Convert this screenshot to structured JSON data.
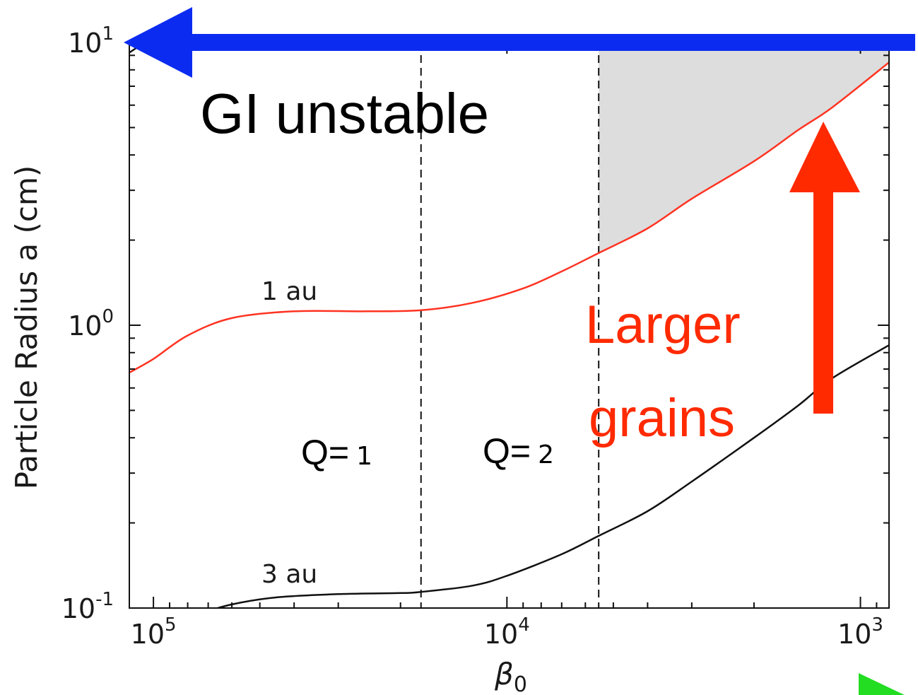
{
  "chart_data": {
    "type": "line",
    "xlabel": "β",
    "xlabel_sub": "0",
    "ylabel": "Particle Radius a (cm)",
    "x_scale": "log",
    "y_scale": "log",
    "x_reversed": true,
    "xlim": [
      117000,
      830
    ],
    "ylim": [
      0.1,
      10
    ],
    "x_ticks": [
      {
        "value": 100000,
        "base": "10",
        "exp": "5"
      },
      {
        "value": 10000,
        "base": "10",
        "exp": "4"
      },
      {
        "value": 1000,
        "base": "10",
        "exp": "3"
      }
    ],
    "y_ticks": [
      {
        "value": 0.1,
        "base": "10",
        "exp": "-1"
      },
      {
        "value": 1,
        "base": "10",
        "exp": "0"
      },
      {
        "value": 10,
        "base": "10",
        "exp": "1"
      }
    ],
    "series": [
      {
        "name": "1 au",
        "color": "#ff3322",
        "x": [
          117000,
          100000,
          80000,
          60000,
          40000,
          25000,
          17500,
          12500,
          9000,
          7000,
          5500,
          4000,
          3000,
          2000,
          1500,
          1200,
          830
        ],
        "y": [
          0.68,
          0.76,
          0.92,
          1.06,
          1.12,
          1.12,
          1.13,
          1.2,
          1.35,
          1.55,
          1.8,
          2.2,
          2.8,
          3.8,
          4.9,
          5.9,
          8.5
        ]
      },
      {
        "name": "3 au",
        "color": "#111111",
        "x": [
          117000,
          75000,
          60000,
          45000,
          30000,
          20000,
          17500,
          12500,
          10000,
          7000,
          5500,
          4000,
          3000,
          2000,
          1500,
          1200,
          830
        ],
        "y": [
          0.08,
          0.095,
          0.103,
          0.109,
          0.112,
          0.113,
          0.114,
          0.12,
          0.13,
          0.155,
          0.18,
          0.22,
          0.28,
          0.4,
          0.52,
          0.65,
          0.85
        ]
      },
      {
        "name": "",
        "color": "#111111",
        "x": [
          117000,
          100000
        ],
        "y": [
          9.2,
          10.5
        ]
      }
    ],
    "vlines": [
      {
        "x": 17500,
        "label": "Q=",
        "value": "1"
      },
      {
        "x": 5500,
        "label": "Q=",
        "value": "2"
      }
    ],
    "shaded_region": {
      "from_x": 5500,
      "to_x": 830,
      "above_series": "1 au",
      "color": "#dddddd"
    },
    "annotations": {
      "gi_unstable": "GI unstable",
      "larger": "Larger",
      "grains": "grains"
    },
    "arrows": {
      "blue": "#0b2cf0",
      "red": "#ff2a00",
      "green": "#22dd22"
    },
    "grid": false
  }
}
